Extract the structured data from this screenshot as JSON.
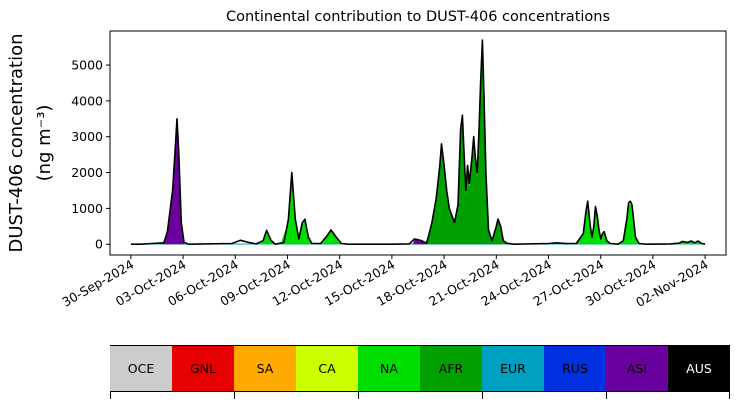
{
  "chart_data": {
    "type": "area",
    "title": "Continental contribution to DUST-406 concentrations",
    "ylabel_line1": "DUST-406 concentration",
    "ylabel_line2": "(ng m⁻³)",
    "ylim": [
      -300,
      5950
    ],
    "yticks": [
      0,
      1000,
      2000,
      3000,
      4000,
      5000
    ],
    "xlim_days": [
      -1.2,
      34.2
    ],
    "xticks": [
      "30-Sep-2024",
      "03-Oct-2024",
      "06-Oct-2024",
      "09-Oct-2024",
      "12-Oct-2024",
      "15-Oct-2024",
      "18-Oct-2024",
      "21-Oct-2024",
      "24-Oct-2024",
      "27-Oct-2024",
      "30-Oct-2024",
      "02-Nov-2024"
    ],
    "grid": false,
    "series_total": [
      [
        0.0,
        0
      ],
      [
        0.6,
        0
      ],
      [
        1.2,
        20
      ],
      [
        1.9,
        40
      ],
      [
        2.1,
        350
      ],
      [
        2.4,
        1500
      ],
      [
        2.55,
        2700
      ],
      [
        2.65,
        3500
      ],
      [
        2.75,
        2600
      ],
      [
        2.9,
        600
      ],
      [
        3.05,
        60
      ],
      [
        3.3,
        0
      ],
      [
        5.8,
        20
      ],
      [
        6.3,
        110
      ],
      [
        6.7,
        60
      ],
      [
        7.2,
        10
      ],
      [
        7.6,
        100
      ],
      [
        7.8,
        390
      ],
      [
        8.05,
        110
      ],
      [
        8.3,
        0
      ],
      [
        8.8,
        50
      ],
      [
        9.05,
        700
      ],
      [
        9.25,
        2000
      ],
      [
        9.45,
        700
      ],
      [
        9.65,
        150
      ],
      [
        9.85,
        600
      ],
      [
        10.0,
        700
      ],
      [
        10.2,
        200
      ],
      [
        10.4,
        20
      ],
      [
        10.9,
        20
      ],
      [
        11.3,
        250
      ],
      [
        11.5,
        400
      ],
      [
        11.8,
        200
      ],
      [
        12.1,
        20
      ],
      [
        12.5,
        0
      ],
      [
        15.0,
        0
      ],
      [
        16.0,
        10
      ],
      [
        16.3,
        150
      ],
      [
        16.7,
        100
      ],
      [
        17.0,
        30
      ],
      [
        17.3,
        600
      ],
      [
        17.55,
        1300
      ],
      [
        17.75,
        2200
      ],
      [
        17.85,
        2800
      ],
      [
        18.0,
        2200
      ],
      [
        18.15,
        1500
      ],
      [
        18.3,
        1000
      ],
      [
        18.6,
        600
      ],
      [
        18.8,
        1100
      ],
      [
        18.95,
        3200
      ],
      [
        19.05,
        3600
      ],
      [
        19.15,
        2500
      ],
      [
        19.25,
        1500
      ],
      [
        19.35,
        2200
      ],
      [
        19.45,
        1700
      ],
      [
        19.6,
        2400
      ],
      [
        19.7,
        3000
      ],
      [
        19.8,
        2400
      ],
      [
        19.9,
        2000
      ],
      [
        20.0,
        3100
      ],
      [
        20.1,
        4500
      ],
      [
        20.2,
        5700
      ],
      [
        20.3,
        4000
      ],
      [
        20.4,
        2000
      ],
      [
        20.55,
        400
      ],
      [
        20.75,
        100
      ],
      [
        21.0,
        500
      ],
      [
        21.1,
        700
      ],
      [
        21.25,
        500
      ],
      [
        21.4,
        100
      ],
      [
        21.6,
        30
      ],
      [
        22.0,
        0
      ],
      [
        24.0,
        20
      ],
      [
        24.5,
        40
      ],
      [
        25.0,
        20
      ],
      [
        25.6,
        20
      ],
      [
        26.0,
        300
      ],
      [
        26.15,
        900
      ],
      [
        26.25,
        1200
      ],
      [
        26.4,
        500
      ],
      [
        26.5,
        200
      ],
      [
        26.6,
        500
      ],
      [
        26.7,
        1050
      ],
      [
        26.8,
        800
      ],
      [
        26.9,
        400
      ],
      [
        27.0,
        150
      ],
      [
        27.1,
        300
      ],
      [
        27.2,
        350
      ],
      [
        27.35,
        100
      ],
      [
        27.55,
        20
      ],
      [
        28.0,
        0
      ],
      [
        28.3,
        100
      ],
      [
        28.5,
        700
      ],
      [
        28.6,
        1150
      ],
      [
        28.7,
        1200
      ],
      [
        28.8,
        1100
      ],
      [
        29.0,
        200
      ],
      [
        29.2,
        20
      ],
      [
        29.6,
        0
      ],
      [
        31.0,
        10
      ],
      [
        31.5,
        30
      ],
      [
        31.7,
        80
      ],
      [
        32.0,
        50
      ],
      [
        32.2,
        90
      ],
      [
        32.4,
        40
      ],
      [
        32.6,
        90
      ],
      [
        32.8,
        20
      ],
      [
        33.0,
        10
      ]
    ],
    "series_afr": [
      [
        16.9,
        0
      ],
      [
        17.3,
        550
      ],
      [
        17.55,
        1200
      ],
      [
        17.75,
        2100
      ],
      [
        17.85,
        2650
      ],
      [
        18.0,
        2100
      ],
      [
        18.15,
        1400
      ],
      [
        18.3,
        950
      ],
      [
        18.6,
        550
      ],
      [
        18.8,
        1050
      ],
      [
        18.95,
        3050
      ],
      [
        19.05,
        3400
      ],
      [
        19.15,
        2400
      ],
      [
        19.25,
        1400
      ],
      [
        19.35,
        2100
      ],
      [
        19.45,
        1600
      ],
      [
        19.6,
        2300
      ],
      [
        19.7,
        2850
      ],
      [
        19.8,
        2300
      ],
      [
        19.9,
        1900
      ],
      [
        20.0,
        2950
      ],
      [
        20.1,
        4300
      ],
      [
        20.2,
        5450
      ],
      [
        20.3,
        3800
      ],
      [
        20.4,
        1900
      ],
      [
        20.55,
        380
      ],
      [
        20.75,
        90
      ],
      [
        21.0,
        470
      ],
      [
        21.1,
        650
      ],
      [
        21.25,
        470
      ],
      [
        21.4,
        90
      ],
      [
        21.7,
        0
      ]
    ],
    "series_na": [
      [
        8.6,
        0
      ],
      [
        9.05,
        650
      ],
      [
        9.25,
        1880
      ],
      [
        9.45,
        650
      ],
      [
        9.65,
        130
      ],
      [
        9.85,
        560
      ],
      [
        10.0,
        650
      ],
      [
        10.2,
        180
      ],
      [
        10.5,
        0
      ],
      [
        10.9,
        0
      ],
      [
        11.3,
        230
      ],
      [
        11.5,
        370
      ],
      [
        11.8,
        180
      ],
      [
        12.2,
        0
      ],
      [
        7.4,
        0
      ],
      [
        7.6,
        90
      ],
      [
        7.8,
        360
      ],
      [
        8.05,
        100
      ],
      [
        8.3,
        0
      ],
      [
        25.6,
        0
      ],
      [
        26.0,
        280
      ],
      [
        26.15,
        850
      ],
      [
        26.25,
        1130
      ],
      [
        26.4,
        470
      ],
      [
        26.5,
        180
      ],
      [
        26.6,
        470
      ],
      [
        26.7,
        990
      ],
      [
        26.8,
        750
      ],
      [
        26.9,
        370
      ],
      [
        27.0,
        130
      ],
      [
        27.1,
        280
      ],
      [
        27.2,
        330
      ],
      [
        27.35,
        90
      ],
      [
        27.6,
        0
      ],
      [
        28.0,
        0
      ],
      [
        28.3,
        90
      ],
      [
        28.5,
        660
      ],
      [
        28.6,
        1090
      ],
      [
        28.7,
        1130
      ],
      [
        28.8,
        1040
      ],
      [
        29.0,
        180
      ],
      [
        29.3,
        0
      ],
      [
        31.3,
        0
      ],
      [
        31.7,
        70
      ],
      [
        32.0,
        40
      ],
      [
        32.2,
        80
      ],
      [
        32.4,
        30
      ],
      [
        32.6,
        80
      ],
      [
        32.9,
        0
      ]
    ],
    "series_asi": [
      [
        1.8,
        0
      ],
      [
        2.1,
        320
      ],
      [
        2.4,
        1450
      ],
      [
        2.55,
        2650
      ],
      [
        2.65,
        3430
      ],
      [
        2.75,
        2550
      ],
      [
        2.9,
        560
      ],
      [
        3.1,
        0
      ],
      [
        16.2,
        0
      ],
      [
        16.3,
        140
      ],
      [
        16.7,
        90
      ],
      [
        17.0,
        0
      ]
    ],
    "legend": {
      "items": [
        {
          "label": "OCE",
          "color": "#cccccc",
          "text_color": "#000000"
        },
        {
          "label": "GNL",
          "color": "#e60000",
          "text_color": "#000000"
        },
        {
          "label": "SA",
          "color": "#ffaa00",
          "text_color": "#000000"
        },
        {
          "label": "CA",
          "color": "#ccff00",
          "text_color": "#000000"
        },
        {
          "label": "NA",
          "color": "#00dd00",
          "text_color": "#000000"
        },
        {
          "label": "AFR",
          "color": "#00a000",
          "text_color": "#000000"
        },
        {
          "label": "EUR",
          "color": "#00a0c0",
          "text_color": "#000000"
        },
        {
          "label": "RUS",
          "color": "#0030e0",
          "text_color": "#000000"
        },
        {
          "label": "ASI",
          "color": "#6a009e",
          "text_color": "#000000"
        },
        {
          "label": "AUS",
          "color": "#000000",
          "text_color": "#ffffff"
        }
      ]
    }
  }
}
